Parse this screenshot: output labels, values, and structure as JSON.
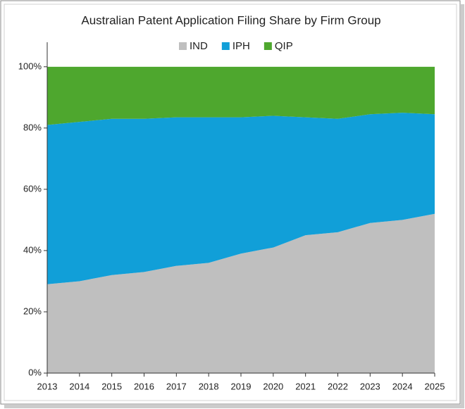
{
  "chart_data": {
    "type": "stacked-area",
    "title": "Australian Patent Application Filing Share by Firm Group",
    "categories": [
      "2013",
      "2014",
      "2015",
      "2016",
      "2017",
      "2018",
      "2019",
      "2020",
      "2021",
      "2022",
      "2023",
      "2024",
      "2025"
    ],
    "series": [
      {
        "name": "IND",
        "color": "#bfbfbf",
        "values": [
          29,
          30,
          32,
          33,
          35,
          36,
          39,
          41,
          45,
          46,
          49,
          50,
          52
        ]
      },
      {
        "name": "IPH",
        "color": "#119fd8",
        "values": [
          52,
          52,
          51,
          50,
          48.5,
          47.5,
          44.5,
          43,
          38.5,
          37,
          35.5,
          35,
          32.5
        ]
      },
      {
        "name": "QIP",
        "color": "#4ea72e",
        "values": [
          19,
          18,
          17,
          17,
          16.5,
          16.5,
          16.5,
          16,
          16.5,
          17,
          15.5,
          15,
          15.5
        ]
      }
    ],
    "ylim": [
      0,
      108
    ],
    "yticks": [
      {
        "value": 0,
        "label": "0%"
      },
      {
        "value": 20,
        "label": "20%"
      },
      {
        "value": 40,
        "label": "40%"
      },
      {
        "value": 60,
        "label": "60%"
      },
      {
        "value": 80,
        "label": "80%"
      },
      {
        "value": 100,
        "label": "100%"
      }
    ],
    "legend": "top",
    "grid": false
  }
}
